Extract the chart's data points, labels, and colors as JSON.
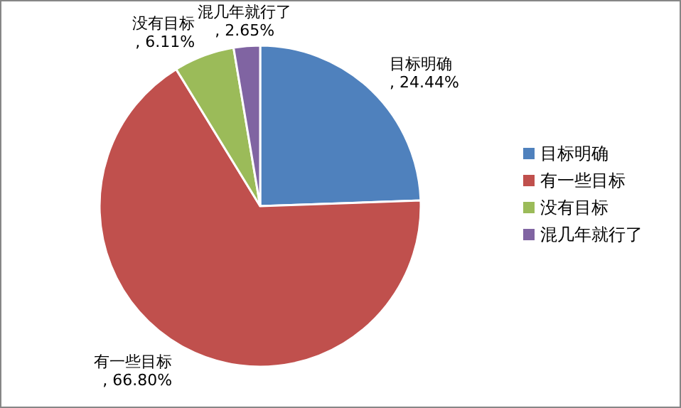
{
  "chart_data": {
    "type": "pie",
    "categories": [
      "目标明确",
      "有一些目标",
      "没有目标",
      "混几年就行了"
    ],
    "values": [
      24.44,
      66.8,
      6.11,
      2.65
    ],
    "value_labels": [
      ", 24.44%",
      ", 66.80%",
      ", 6.11%",
      ", 2.65%"
    ],
    "colors": [
      "#4f81bd",
      "#c0504d",
      "#9bbb59",
      "#8064a2"
    ],
    "legend": "right"
  }
}
